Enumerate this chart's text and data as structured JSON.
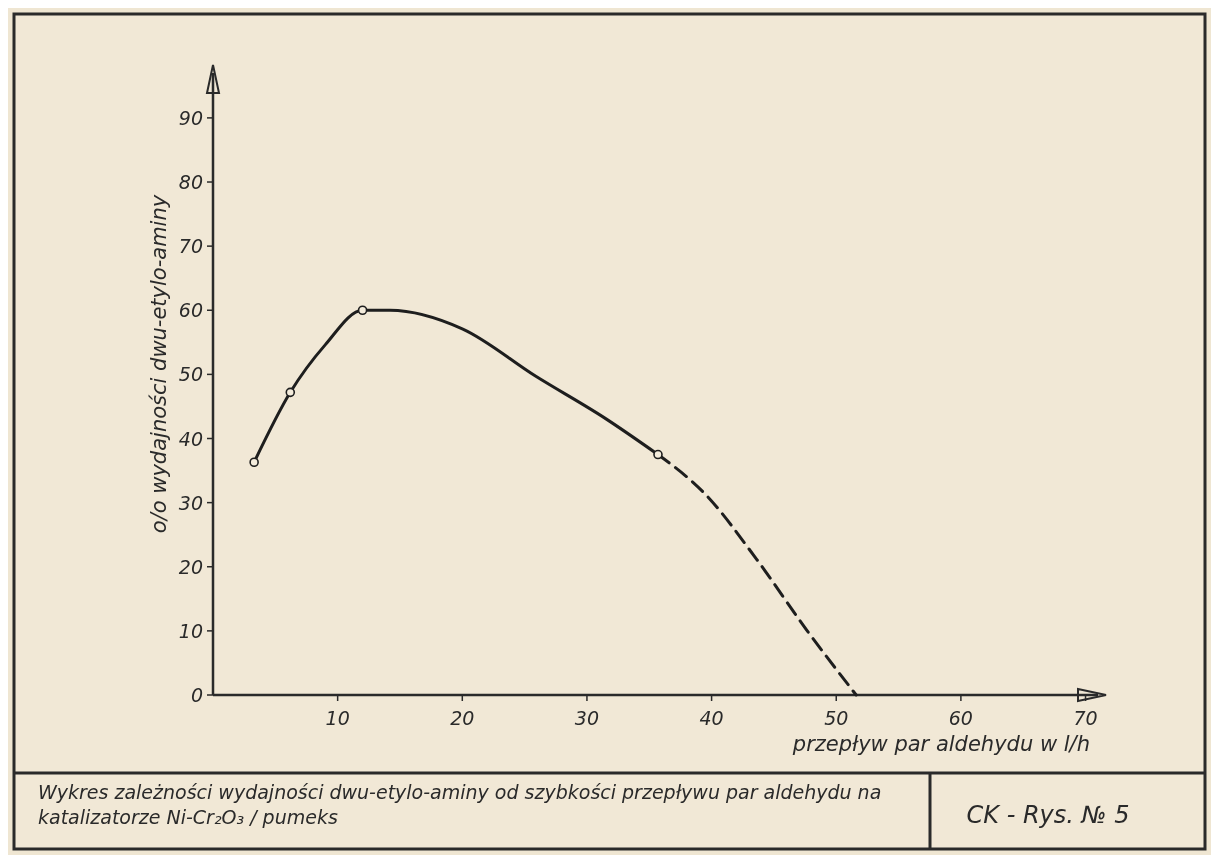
{
  "chart_data": {
    "type": "line",
    "xlabel": "przepływ par aldehydu w l/h",
    "ylabel": "o/o wydajności dwu-etylo-aminy",
    "title": "Wykres zależności wydajności dwu-etylo-aminy od szybkości przepływu par aldehydu na katalizatorze Ni-Cr₂O₃ / pumeks",
    "annotations": [
      "CK - Rys. № 5"
    ],
    "xlim": [
      0,
      71
    ],
    "ylim": [
      0,
      97
    ],
    "xticks": [
      10,
      20,
      30,
      40,
      50,
      60,
      70
    ],
    "yticks": [
      0,
      10,
      20,
      30,
      40,
      50,
      60,
      70,
      80,
      90
    ],
    "grid": false,
    "series": [
      {
        "type": "line",
        "color": "#1e1e1e",
        "line_style": "solid",
        "marker": "none",
        "x": [
          3.3,
          6.2,
          9.0,
          12.0,
          14.2,
          20.0,
          25.9,
          31.5,
          35.7
        ],
        "values": [
          36.3,
          47.2,
          54.6,
          60.0,
          60.0,
          57.1,
          49.7,
          43.1,
          37.5
        ]
      },
      {
        "type": "line",
        "color": "#1e1e1e",
        "line_style": "dashed",
        "marker": "none",
        "x": [
          35.7,
          39.6,
          43.6,
          47.6,
          51.6
        ],
        "values": [
          37.5,
          31.1,
          21.2,
          10.2,
          0
        ]
      },
      {
        "type": "scatter",
        "color": "#1e1e1e",
        "marker": "circle",
        "x": [
          3.3,
          6.2,
          12.0,
          35.7
        ],
        "values": [
          36.3,
          47.2,
          60.0,
          37.5
        ]
      }
    ]
  }
}
